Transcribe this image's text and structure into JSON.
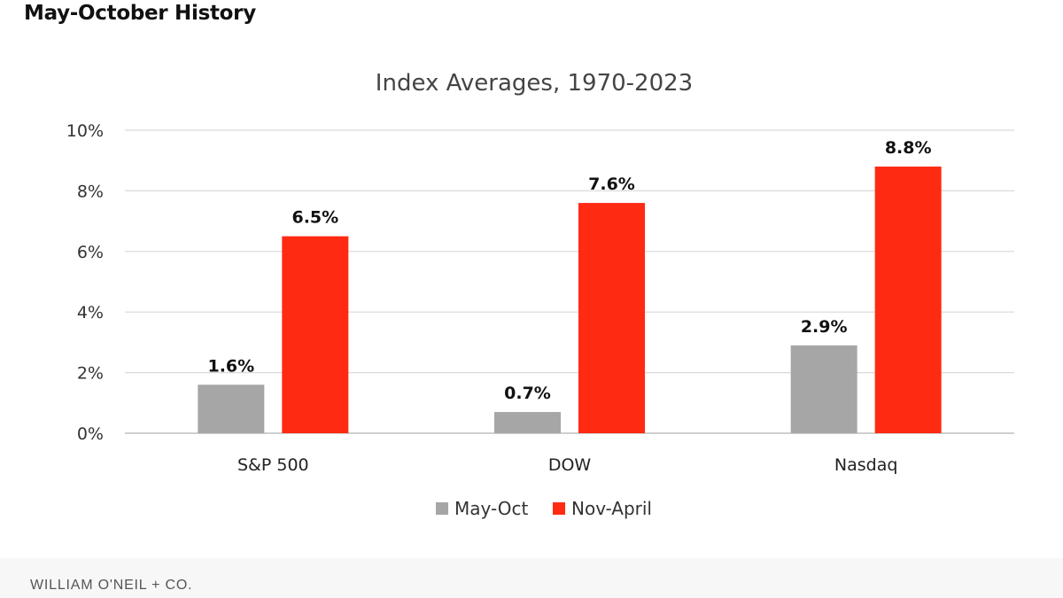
{
  "header": {
    "title": "May-October History"
  },
  "footer": {
    "brand": "WILLIAM O'NEIL + CO."
  },
  "colors": {
    "may_oct": "#a6a6a6",
    "nov_april": "#ff2a12",
    "grid": "#d9d9d9",
    "axis": "#bfbfbf"
  },
  "chart_data": {
    "type": "bar",
    "title": "Index Averages, 1970-2023",
    "categories": [
      "S&P 500",
      "DOW",
      "Nasdaq"
    ],
    "series": [
      {
        "name": "May-Oct",
        "values": [
          1.6,
          0.7,
          2.9
        ],
        "labels": [
          "1.6%",
          "0.7%",
          "2.9%"
        ],
        "color": "#a6a6a6"
      },
      {
        "name": "Nov-April",
        "values": [
          6.5,
          7.6,
          8.8
        ],
        "labels": [
          "6.5%",
          "7.6%",
          "8.8%"
        ],
        "color": "#ff2a12"
      }
    ],
    "yticks": [
      "0%",
      "2%",
      "4%",
      "6%",
      "8%",
      "10%"
    ],
    "ytick_values": [
      0,
      2,
      4,
      6,
      8,
      10
    ],
    "ylim": [
      0,
      10
    ],
    "grid": true,
    "legend": "bottom"
  }
}
